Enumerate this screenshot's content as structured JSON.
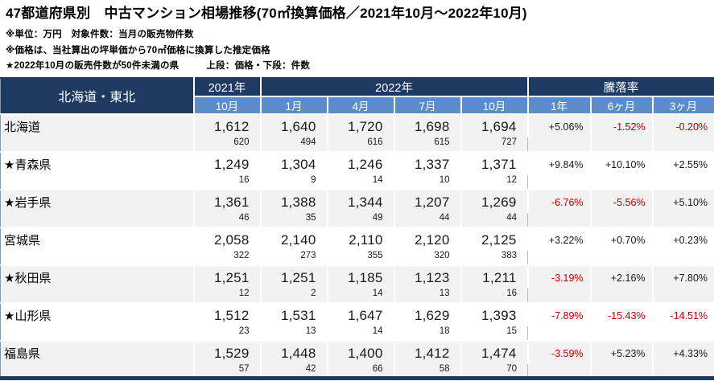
{
  "title": "47都道府県別　中古マンション相場推移(70㎡換算価格／2021年10月～2022年10月)",
  "notes": {
    "units": "※単位：万円　対象件数：当月の販売物件数",
    "method": "※価格は、当社算出の坪単価から70㎡価格に換算した推定価格",
    "star": "★2022年10月の販売件数が50件未満の県",
    "legend": "上段：価格・下段：件数"
  },
  "table": {
    "region_label": "北海道・東北",
    "year_headers": {
      "y2021": "2021年",
      "y2022": "2022年",
      "rate": "騰落率"
    },
    "month_headers": [
      "10月",
      "1月",
      "4月",
      "7月",
      "10月",
      "1年",
      "6ヶ月",
      "3ヶ月"
    ],
    "rows": [
      {
        "name": "北海道",
        "prices": [
          "1,612",
          "1,640",
          "1,720",
          "1,698",
          "1,694"
        ],
        "counts": [
          "620",
          "494",
          "616",
          "615",
          "727"
        ],
        "rates": [
          "+5.06%",
          "-1.52%",
          "-0.20%"
        ]
      },
      {
        "name": "★青森県",
        "prices": [
          "1,249",
          "1,304",
          "1,246",
          "1,337",
          "1,371"
        ],
        "counts": [
          "16",
          "9",
          "14",
          "10",
          "12"
        ],
        "rates": [
          "+9.84%",
          "+10.10%",
          "+2.55%"
        ]
      },
      {
        "name": "★岩手県",
        "prices": [
          "1,361",
          "1,388",
          "1,344",
          "1,207",
          "1,269"
        ],
        "counts": [
          "46",
          "35",
          "49",
          "44",
          "44"
        ],
        "rates": [
          "-6.76%",
          "-5.56%",
          "+5.10%"
        ]
      },
      {
        "name": "宮城県",
        "prices": [
          "2,058",
          "2,140",
          "2,110",
          "2,120",
          "2,125"
        ],
        "counts": [
          "322",
          "273",
          "355",
          "320",
          "383"
        ],
        "rates": [
          "+3.22%",
          "+0.70%",
          "+0.23%"
        ]
      },
      {
        "name": "★秋田県",
        "prices": [
          "1,251",
          "1,251",
          "1,185",
          "1,123",
          "1,211"
        ],
        "counts": [
          "12",
          "2",
          "14",
          "13",
          "16"
        ],
        "rates": [
          "-3.19%",
          "+2.16%",
          "+7.80%"
        ]
      },
      {
        "name": "★山形県",
        "prices": [
          "1,512",
          "1,531",
          "1,647",
          "1,629",
          "1,393"
        ],
        "counts": [
          "23",
          "13",
          "14",
          "18",
          "15"
        ],
        "rates": [
          "-7.89%",
          "-15.43%",
          "-14.51%"
        ]
      },
      {
        "name": "福島県",
        "prices": [
          "1,529",
          "1,448",
          "1,400",
          "1,412",
          "1,474"
        ],
        "counts": [
          "57",
          "42",
          "66",
          "58",
          "70"
        ],
        "rates": [
          "-3.59%",
          "+5.23%",
          "+4.33%"
        ]
      }
    ]
  },
  "colors": {
    "header-dark": "#1F3A60",
    "header-blue": "#5B8CCB",
    "stripe": "#F2F2F2",
    "negative": "#C00000"
  }
}
